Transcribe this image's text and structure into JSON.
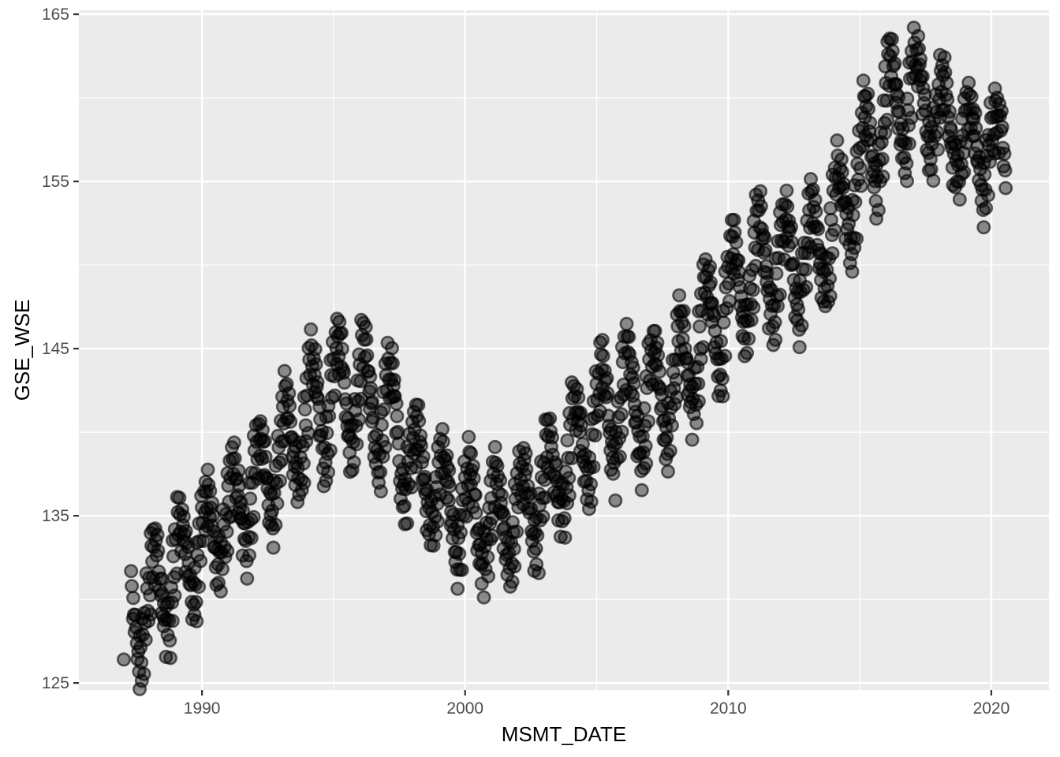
{
  "figure": {
    "kind": "ggplot2-style scatter plot",
    "background": "#FFFFFF",
    "panel_background": "#EBEBEB",
    "grid_color": "#FFFFFF",
    "tick_mark_color": "#333333",
    "tick_label_color": "#4D4D4D",
    "axis_title_color": "#000000"
  },
  "chart_data": {
    "type": "scatter",
    "title": "",
    "xlabel": "MSMT_DATE",
    "ylabel": "GSE_WSE",
    "legend": "none",
    "grid": "white major and minor gridlines on grey panel",
    "x_ticks": [
      1990,
      2000,
      2010,
      2020
    ],
    "x_minor_ticks": [
      1995,
      2005,
      2015
    ],
    "y_ticks": [
      125,
      135,
      145,
      155,
      165
    ],
    "y_minor_ticks": [
      130,
      140,
      150,
      160
    ],
    "x_domain": [
      1985.32,
      2022.19
    ],
    "y_domain": [
      124.58,
      165.24
    ],
    "point_style": {
      "shape": "circle",
      "radius_px": 7.7,
      "fill": "#000000",
      "fill_alpha": 0.42,
      "stroke": "#000000",
      "stroke_alpha": 0.6,
      "stroke_width": 2.6
    },
    "pattern_summary": "Seasonal zigzag groundwater elevation: rises from ~127 ft (1987) to ~146 (1995), declines to ~132 (2000-2001), rises to ~146 (2006), climbs to ~154 (2011), plateau, then steep rise to maximum ~163.3 (2016-2017), declining/oscillating to ~155-160 by mid-2020.",
    "observed_extremes": {
      "min": {
        "x": 1987.03,
        "y": 126.4
      },
      "max": {
        "x": 2016.6,
        "y": 163.3
      }
    },
    "extra_points": [
      [
        1987.03,
        126.4
      ]
    ],
    "series_model": {
      "description": "Monthly measurements from multiple wells; value = trend(January anchors, linear by month) + amplitude(year) * seasonal_monthly_shape[month] + noise_cycle; each date also has companion well readings offset by well_offsets.",
      "x_start": 1987.33,
      "x_step": 0.08333,
      "x_end": 2020.55,
      "trend_january_levels": [
        [
          1987,
          128.3
        ],
        [
          1988,
          130.3
        ],
        [
          1989,
          132.3
        ],
        [
          1990,
          134.0
        ],
        [
          1991,
          135.4
        ],
        [
          1992,
          137.2
        ],
        [
          1993,
          139.0
        ],
        [
          1994,
          141.2
        ],
        [
          1995,
          143.0
        ],
        [
          1996,
          142.6
        ],
        [
          1997,
          141.6
        ],
        [
          1998,
          138.8
        ],
        [
          1999,
          136.6
        ],
        [
          2000,
          135.6
        ],
        [
          2001,
          135.1
        ],
        [
          2002,
          135.5
        ],
        [
          2003,
          137.0
        ],
        [
          2004,
          139.0
        ],
        [
          2005,
          141.2
        ],
        [
          2006,
          142.2
        ],
        [
          2007,
          142.4
        ],
        [
          2008,
          143.3
        ],
        [
          2009,
          146.0
        ],
        [
          2010,
          148.4
        ],
        [
          2011,
          150.2
        ],
        [
          2012,
          150.6
        ],
        [
          2013,
          150.8
        ],
        [
          2014,
          152.6
        ],
        [
          2015,
          156.0
        ],
        [
          2016,
          159.6
        ],
        [
          2017,
          160.8
        ],
        [
          2018,
          159.4
        ],
        [
          2019,
          157.8
        ],
        [
          2020,
          157.2
        ],
        [
          2021,
          158.5
        ]
      ],
      "seasonal_amplitude_by_year": [
        [
          1987,
          2.6
        ],
        [
          1988,
          3.0
        ],
        [
          1989,
          2.8
        ],
        [
          1990,
          2.4
        ],
        [
          1991,
          2.6
        ],
        [
          1992,
          2.8
        ],
        [
          1993,
          3.0
        ],
        [
          1994,
          3.4
        ],
        [
          1995,
          3.3
        ],
        [
          1996,
          3.4
        ],
        [
          1997,
          3.2
        ],
        [
          1998,
          2.4
        ],
        [
          1999,
          2.8
        ],
        [
          2000,
          2.9
        ],
        [
          2001,
          2.7
        ],
        [
          2002,
          2.7
        ],
        [
          2003,
          2.7
        ],
        [
          2004,
          3.0
        ],
        [
          2005,
          3.2
        ],
        [
          2006,
          3.3
        ],
        [
          2007,
          3.1
        ],
        [
          2008,
          3.2
        ],
        [
          2009,
          3.4
        ],
        [
          2010,
          3.3
        ],
        [
          2011,
          3.2
        ],
        [
          2012,
          2.9
        ],
        [
          2013,
          3.1
        ],
        [
          2014,
          3.0
        ],
        [
          2015,
          3.2
        ],
        [
          2016,
          3.2
        ],
        [
          2017,
          2.6
        ],
        [
          2018,
          2.4
        ],
        [
          2019,
          2.4
        ],
        [
          2020,
          2.2
        ]
      ],
      "seasonal_monthly_shape": [
        0.5,
        0.85,
        1.0,
        0.88,
        0.55,
        0.1,
        -0.45,
        -0.8,
        -1.0,
        -0.85,
        -0.45,
        0.05
      ],
      "noise_cycle": [
        0.4,
        -0.3,
        0.2,
        -0.5,
        0.1,
        0.3,
        -0.2
      ],
      "well_offsets": [
        [
          0.03,
          -1.1
        ],
        [
          -0.025,
          0.85
        ],
        [
          0.05,
          -2.1
        ]
      ]
    }
  }
}
